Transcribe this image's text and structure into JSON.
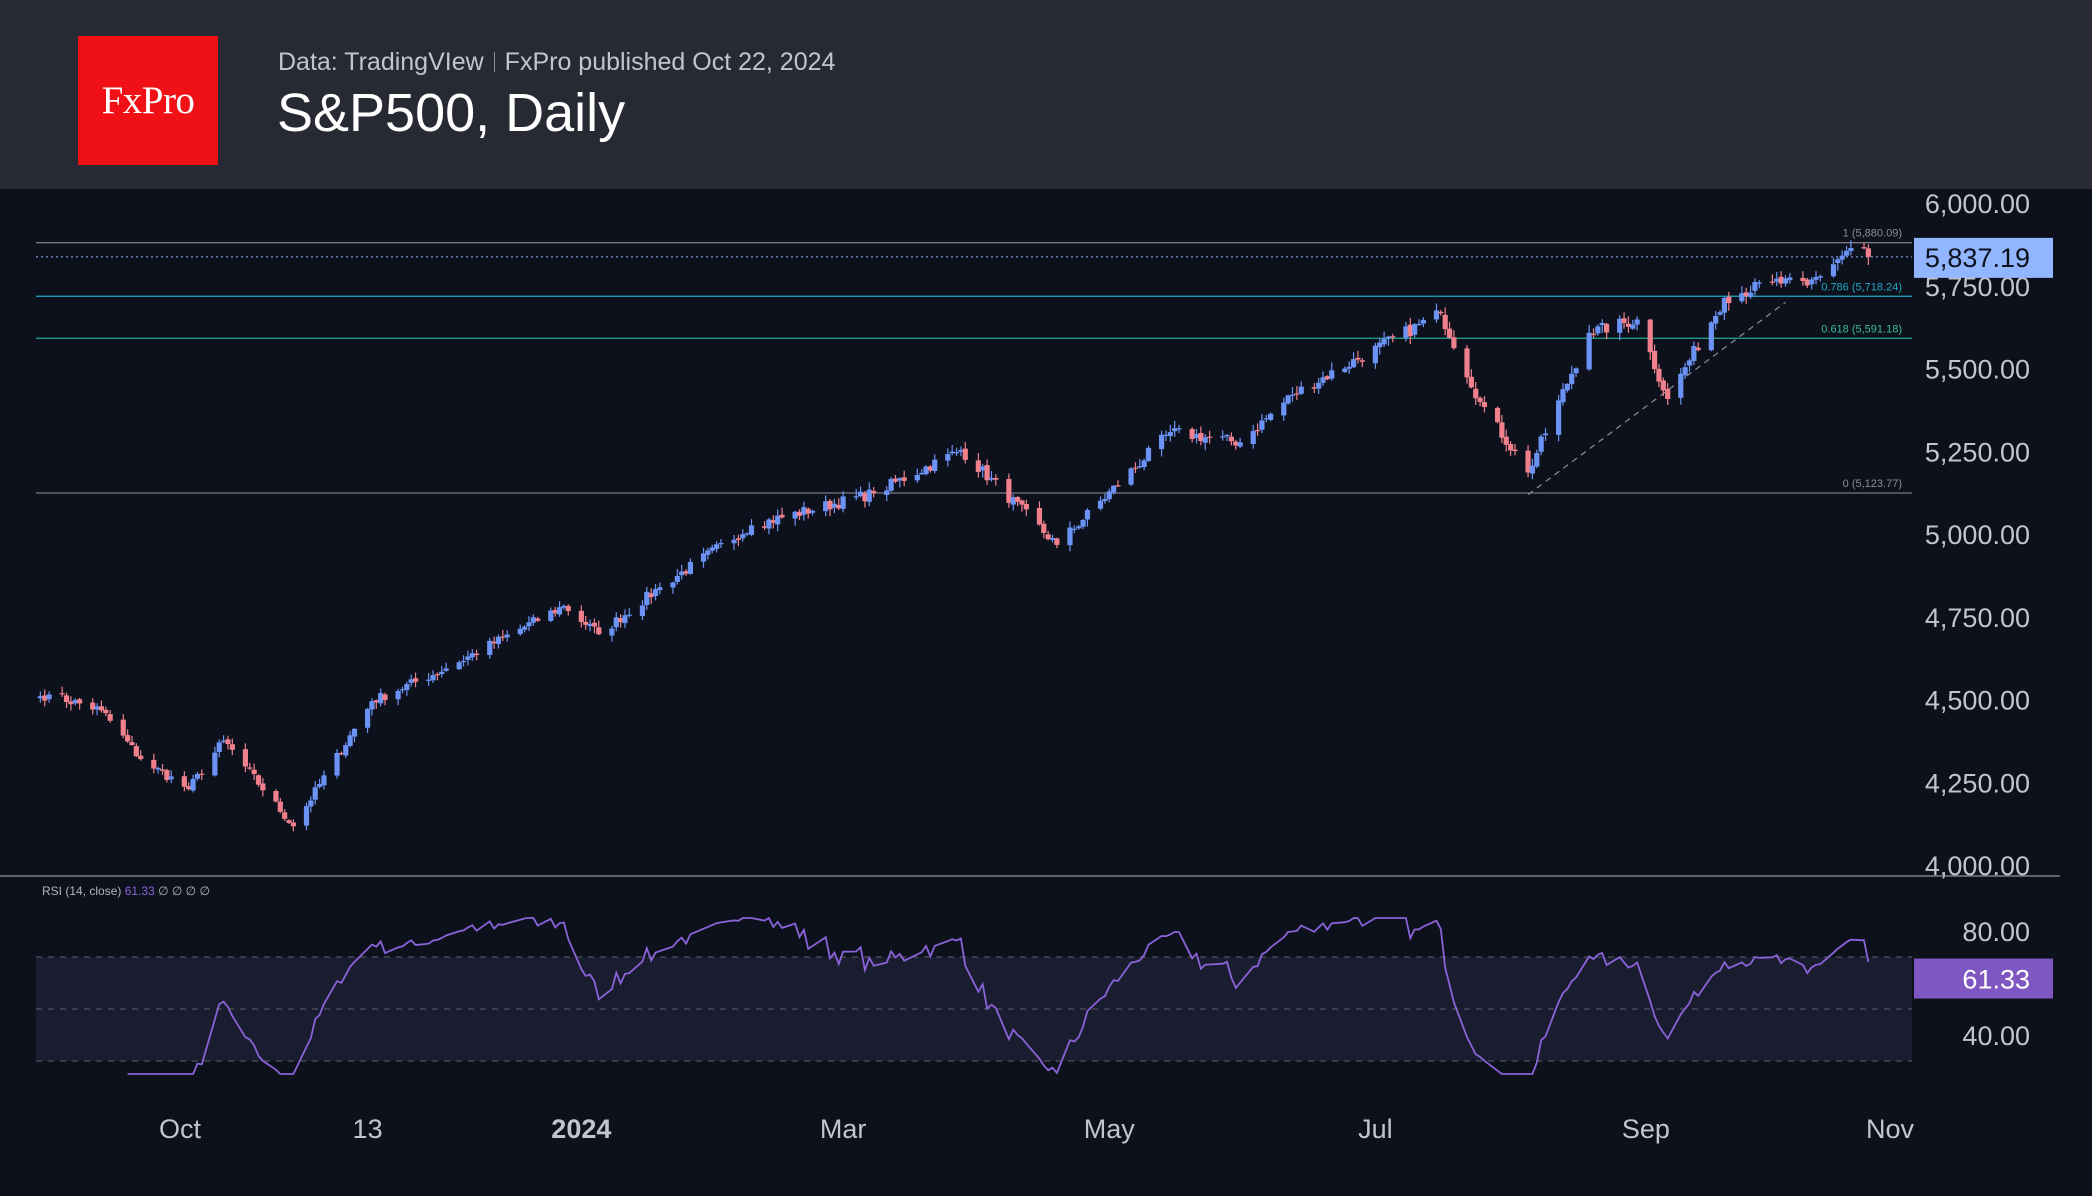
{
  "header": {
    "logo_text": "FxPro",
    "data_source": "Data: TradingVIew",
    "published": "FxPro published Oct 22, 2024",
    "title": "S&P500, Daily"
  },
  "colors": {
    "background": "#0d111c",
    "header_bg": "#272a33",
    "logo_red": "#ef1116",
    "up": "#6b93f5",
    "down": "#f0818c",
    "rsi_line": "#8a63d8",
    "price_badge": "#91b6ff",
    "rsi_badge": "#7e57c2",
    "fib_786": "#22a7c4",
    "fib_618": "#1f9a8a",
    "fib_level": "#787b86"
  },
  "chart_data": [
    {
      "type": "candlestick",
      "title": "S&P500, Daily",
      "x_tick_labels": [
        "Oct",
        "13",
        "2024",
        "Mar",
        "May",
        "Jul",
        "Sep",
        "Nov"
      ],
      "y_tick_labels": [
        "6,000.00",
        "5,750.00",
        "5,500.00",
        "5,250.00",
        "5,000.00",
        "4,750.00",
        "4,500.00",
        "4,250.00",
        "4,000.00"
      ],
      "ylim": [
        4000,
        6000
      ],
      "last_price_label": "5,837.19",
      "last_price": 5837.19,
      "anchors": [
        {
          "date": "2023-08-30",
          "close": 4510
        },
        {
          "date": "2023-09-01",
          "close": 4515
        },
        {
          "date": "2023-09-13",
          "close": 4467
        },
        {
          "date": "2023-09-22",
          "close": 4320
        },
        {
          "date": "2023-10-03",
          "close": 4229
        },
        {
          "date": "2023-10-11",
          "close": 4376
        },
        {
          "date": "2023-10-27",
          "close": 4117
        },
        {
          "date": "2023-11-14",
          "close": 4495
        },
        {
          "date": "2023-12-01",
          "close": 4594
        },
        {
          "date": "2023-12-28",
          "close": 4783
        },
        {
          "date": "2024-01-05",
          "close": 4697
        },
        {
          "date": "2024-01-19",
          "close": 4839
        },
        {
          "date": "2024-02-09",
          "close": 5026
        },
        {
          "date": "2024-03-08",
          "close": 5123
        },
        {
          "date": "2024-03-28",
          "close": 5254
        },
        {
          "date": "2024-04-19",
          "close": 4967
        },
        {
          "date": "2024-05-15",
          "close": 5308
        },
        {
          "date": "2024-05-31",
          "close": 5277
        },
        {
          "date": "2024-06-12",
          "close": 5421
        },
        {
          "date": "2024-07-16",
          "close": 5667
        },
        {
          "date": "2024-07-25",
          "close": 5399
        },
        {
          "date": "2024-08-05",
          "close": 5186
        },
        {
          "date": "2024-08-19",
          "close": 5608
        },
        {
          "date": "2024-08-30",
          "close": 5648
        },
        {
          "date": "2024-09-06",
          "close": 5408
        },
        {
          "date": "2024-09-19",
          "close": 5713
        },
        {
          "date": "2024-09-30",
          "close": 5762
        },
        {
          "date": "2024-10-08",
          "close": 5751
        },
        {
          "date": "2024-10-18",
          "close": 5864
        },
        {
          "date": "2024-10-22",
          "close": 5851
        }
      ],
      "fib_levels": [
        {
          "label": "1 (5,880.09)",
          "price": 5880.09
        },
        {
          "label": "0.786 (5,718.24)",
          "price": 5718.24
        },
        {
          "label": "0.618 (5,591.18)",
          "price": 5591.18
        },
        {
          "label": "0 (5,123.77)",
          "price": 5123.77
        }
      ],
      "trendline": {
        "from": {
          "date": "2024-08-05",
          "price": 5119
        },
        "to": {
          "date": "2024-10-03",
          "price": 5700
        }
      }
    },
    {
      "type": "line",
      "title": "RSI (14, close)",
      "legend_value": "61.33",
      "legend_values": [
        "∅",
        "∅",
        "∅",
        "∅"
      ],
      "y_tick_labels": [
        "80.00",
        "40.00"
      ],
      "ylim": [
        25,
        85
      ],
      "bands": [
        30,
        50,
        70
      ],
      "last_value": 61.33,
      "last_value_label": "61.33"
    }
  ]
}
